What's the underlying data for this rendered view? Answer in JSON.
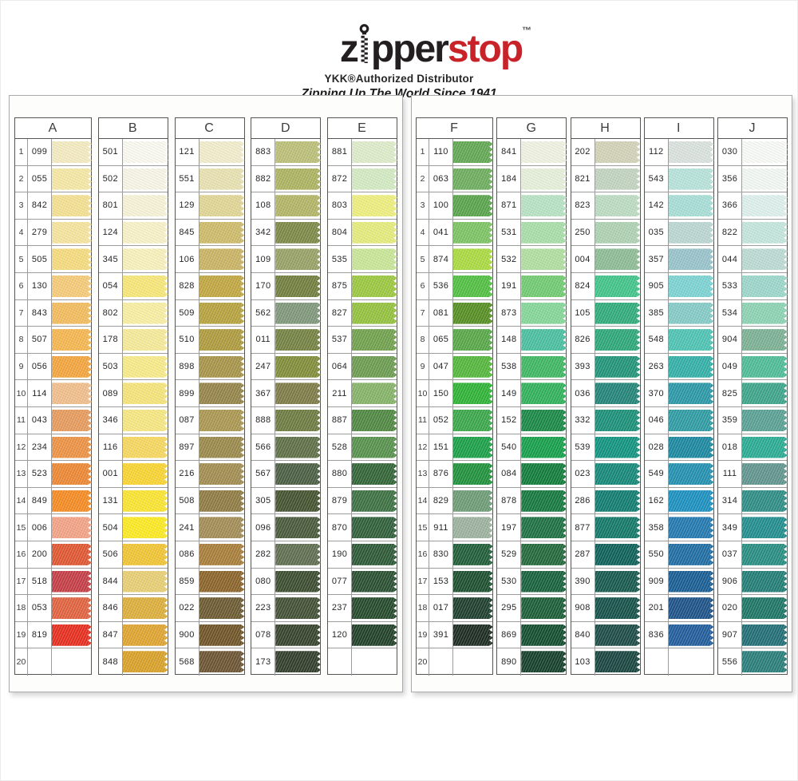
{
  "header": {
    "brand_z": "z",
    "brand_pper": "pper",
    "brand_stop": "stop",
    "brand_tm": "™",
    "subtitle": "YKK®Authorized Distributor",
    "tagline": "Zipping Up The World Since 1941",
    "brand_black_color": "#231f20",
    "brand_red_color": "#c9232a"
  },
  "row_numbers": [
    "1",
    "2",
    "3",
    "4",
    "5",
    "6",
    "7",
    "8",
    "9",
    "10",
    "11",
    "12",
    "13",
    "14",
    "15",
    "16",
    "17",
    "18",
    "19",
    "20"
  ],
  "panels": [
    {
      "columns": [
        {
          "letter": "A",
          "cells": [
            [
              "099",
              "#F5ECC0"
            ],
            [
              "055",
              "#F7E9A4"
            ],
            [
              "842",
              "#F5E190"
            ],
            [
              "279",
              "#F7E59C"
            ],
            [
              "505",
              "#F7DC7C"
            ],
            [
              "130",
              "#F7CB76"
            ],
            [
              "843",
              "#F4BC5A"
            ],
            [
              "507",
              "#F7B64C"
            ],
            [
              "056",
              "#F5A43A"
            ],
            [
              "114",
              "#F2BE8A"
            ],
            [
              "043",
              "#E89A5A"
            ],
            [
              "234",
              "#EE9140"
            ],
            [
              "523",
              "#EE8630"
            ],
            [
              "849",
              "#F78A1E"
            ],
            [
              "006",
              "#F4A284"
            ],
            [
              "200",
              "#E1542E"
            ],
            [
              "518",
              "#C53A42"
            ],
            [
              "053",
              "#E2603C"
            ],
            [
              "819",
              "#E82A1A"
            ],
            [
              "",
              ""
            ]
          ]
        },
        {
          "letter": "B",
          "cells": [
            [
              "501",
              "#FCFBF2"
            ],
            [
              "502",
              "#F9F7E6"
            ],
            [
              "801",
              "#F8F4D8"
            ],
            [
              "124",
              "#FAF3C8"
            ],
            [
              "345",
              "#F9F2BC"
            ],
            [
              "054",
              "#F9E876"
            ],
            [
              "802",
              "#FAF0A2"
            ],
            [
              "178",
              "#F8EB98"
            ],
            [
              "503",
              "#F9EC88"
            ],
            [
              "089",
              "#F7E578"
            ],
            [
              "346",
              "#F8E880"
            ],
            [
              "116",
              "#F8D85C"
            ],
            [
              "001",
              "#FAD52E"
            ],
            [
              "131",
              "#FCE52C"
            ],
            [
              "504",
              "#FEEB1E"
            ],
            [
              "506",
              "#F2C530"
            ],
            [
              "844",
              "#E9CF72"
            ],
            [
              "846",
              "#DDAE38"
            ],
            [
              "847",
              "#E0A42C"
            ],
            [
              "848",
              "#D9A024"
            ]
          ]
        },
        {
          "letter": "C",
          "cells": [
            [
              "121",
              "#F3EECC"
            ],
            [
              "551",
              "#E9E2B0"
            ],
            [
              "129",
              "#E1D694"
            ],
            [
              "845",
              "#CEBB68"
            ],
            [
              "106",
              "#CAB362"
            ],
            [
              "828",
              "#C1A63E"
            ],
            [
              "509",
              "#B6A23A"
            ],
            [
              "510",
              "#AE9A3A"
            ],
            [
              "898",
              "#A79346"
            ],
            [
              "899",
              "#948346"
            ],
            [
              "087",
              "#AA964E"
            ],
            [
              "897",
              "#998848"
            ],
            [
              "216",
              "#A18C4E"
            ],
            [
              "508",
              "#8E7A40"
            ],
            [
              "241",
              "#A28B54"
            ],
            [
              "086",
              "#A87C36"
            ],
            [
              "859",
              "#8A6226"
            ],
            [
              "022",
              "#6A582E"
            ],
            [
              "900",
              "#6E5224"
            ],
            [
              "568",
              "#6A5230"
            ]
          ]
        },
        {
          "letter": "D",
          "cells": [
            [
              "883",
              "#BBBF76"
            ],
            [
              "882",
              "#ACB35E"
            ],
            [
              "108",
              "#B2B564"
            ],
            [
              "342",
              "#7B8844"
            ],
            [
              "109",
              "#97A064"
            ],
            [
              "170",
              "#6F7D3B"
            ],
            [
              "562",
              "#7E9679"
            ],
            [
              "011",
              "#72813F"
            ],
            [
              "247",
              "#7F8C36"
            ],
            [
              "367",
              "#7C7A44"
            ],
            [
              "888",
              "#6B7A3E"
            ],
            [
              "566",
              "#5C6E44"
            ],
            [
              "567",
              "#485C40"
            ],
            [
              "305",
              "#42502C"
            ],
            [
              "096",
              "#465838"
            ],
            [
              "282",
              "#5E6C4E"
            ],
            [
              "080",
              "#384A2C"
            ],
            [
              "223",
              "#404E32"
            ],
            [
              "078",
              "#344028"
            ],
            [
              "173",
              "#2F3B28"
            ]
          ]
        },
        {
          "letter": "E",
          "cells": [
            [
              "881",
              "#DFEDCA"
            ],
            [
              "872",
              "#D3EBC2"
            ],
            [
              "803",
              "#EFF07C"
            ],
            [
              "804",
              "#E5ED7A"
            ],
            [
              "535",
              "#C8E796"
            ],
            [
              "875",
              "#9AC83C"
            ],
            [
              "827",
              "#92C23A"
            ],
            [
              "537",
              "#6FA04A"
            ],
            [
              "064",
              "#699B4D"
            ],
            [
              "211",
              "#84B366"
            ],
            [
              "887",
              "#4D873F"
            ],
            [
              "528",
              "#549049"
            ],
            [
              "880",
              "#2E6333"
            ],
            [
              "879",
              "#396F3F"
            ],
            [
              "870",
              "#2D5D37"
            ],
            [
              "190",
              "#295733"
            ],
            [
              "077",
              "#254D2D"
            ],
            [
              "237",
              "#214727"
            ],
            [
              "120",
              "#1D3E25"
            ],
            [
              "",
              ""
            ]
          ]
        }
      ]
    },
    {
      "columns": [
        {
          "letter": "F",
          "cells": [
            [
              "110",
              "#60A751"
            ],
            [
              "063",
              "#6BAD5B"
            ],
            [
              "100",
              "#57A349"
            ],
            [
              "041",
              "#7BC361"
            ],
            [
              "874",
              "#A9DB3D"
            ],
            [
              "536",
              "#4FBF3F"
            ],
            [
              "081",
              "#538D1F"
            ],
            [
              "065",
              "#55A745"
            ],
            [
              "047",
              "#51B739"
            ],
            [
              "150",
              "#2BB333"
            ],
            [
              "052",
              "#37A747"
            ],
            [
              "151",
              "#179F44"
            ],
            [
              "876",
              "#1C9038"
            ],
            [
              "829",
              "#6B9B74"
            ],
            [
              "911",
              "#9BB29E"
            ],
            [
              "830",
              "#1D5B35"
            ],
            [
              "153",
              "#184C2B"
            ],
            [
              "017",
              "#1A3C2A"
            ],
            [
              "391",
              "#18281E"
            ],
            [
              "",
              ""
            ]
          ]
        },
        {
          "letter": "G",
          "cells": [
            [
              "841",
              "#F1F3E2"
            ],
            [
              "184",
              "#E7F1DA"
            ],
            [
              "871",
              "#B7E3C3"
            ],
            [
              "531",
              "#A7DFA7"
            ],
            [
              "532",
              "#AFDF9F"
            ],
            [
              "191",
              "#6FCB6F"
            ],
            [
              "873",
              "#83D797"
            ],
            [
              "148",
              "#47BF9F"
            ],
            [
              "538",
              "#3BB75F"
            ],
            [
              "149",
              "#2DB157"
            ],
            [
              "152",
              "#158743"
            ],
            [
              "540",
              "#119F47"
            ],
            [
              "084",
              "#0D7B37"
            ],
            [
              "878",
              "#11773B"
            ],
            [
              "197",
              "#196F3F"
            ],
            [
              "529",
              "#1F6737"
            ],
            [
              "530",
              "#135F39"
            ],
            [
              "295",
              "#175B33"
            ],
            [
              "869",
              "#0F4B2B"
            ],
            [
              "890",
              "#113D27"
            ]
          ]
        },
        {
          "letter": "H",
          "cells": [
            [
              "202",
              "#D2D3B8"
            ],
            [
              "821",
              "#C2D4C0"
            ],
            [
              "823",
              "#BCDCC2"
            ],
            [
              "250",
              "#AED2B2"
            ],
            [
              "004",
              "#8CBC94"
            ],
            [
              "824",
              "#3EC488"
            ],
            [
              "105",
              "#2DAB79"
            ],
            [
              "826",
              "#29A777"
            ],
            [
              "393",
              "#1D9377"
            ],
            [
              "036",
              "#1F8377"
            ],
            [
              "332",
              "#178F77"
            ],
            [
              "539",
              "#0D937F"
            ],
            [
              "023",
              "#118777"
            ],
            [
              "286",
              "#0D7B6F"
            ],
            [
              "877",
              "#0F7767"
            ],
            [
              "287",
              "#095F57"
            ],
            [
              "390",
              "#13574B"
            ],
            [
              "908",
              "#114F47"
            ],
            [
              "840",
              "#194943"
            ],
            [
              "103",
              "#15433D"
            ]
          ]
        },
        {
          "letter": "I",
          "cells": [
            [
              "112",
              "#DBE3DF"
            ],
            [
              "543",
              "#B7E3DB"
            ],
            [
              "142",
              "#A7DFD7"
            ],
            [
              "035",
              "#BBD7D3"
            ],
            [
              "357",
              "#97C3CB"
            ],
            [
              "905",
              "#7BD3D3"
            ],
            [
              "385",
              "#83CBC7"
            ],
            [
              "548",
              "#4BC3B3"
            ],
            [
              "263",
              "#2FAFA7"
            ],
            [
              "370",
              "#2797A7"
            ],
            [
              "046",
              "#2B9BA3"
            ],
            [
              "028",
              "#17879F"
            ],
            [
              "549",
              "#1F8FAF"
            ],
            [
              "162",
              "#178FBF"
            ],
            [
              "358",
              "#1F77AF"
            ],
            [
              "550",
              "#1B6BA3"
            ],
            [
              "909",
              "#145B93"
            ],
            [
              "201",
              "#195087"
            ],
            [
              "836",
              "#1D5B9B"
            ],
            [
              "",
              ""
            ]
          ]
        },
        {
          "letter": "J",
          "cells": [
            [
              "030",
              "#FAFCF9"
            ],
            [
              "356",
              "#F3F9F5"
            ],
            [
              "366",
              "#DEF1ED"
            ],
            [
              "822",
              "#C3E7DD"
            ],
            [
              "044",
              "#BBDBD3"
            ],
            [
              "533",
              "#9BD7CB"
            ],
            [
              "534",
              "#8BD3B3"
            ],
            [
              "904",
              "#7AB093"
            ],
            [
              "049",
              "#4BBC96"
            ],
            [
              "825",
              "#3AA489"
            ],
            [
              "359",
              "#57A093"
            ],
            [
              "018",
              "#26AB92"
            ],
            [
              "111",
              "#5F948D"
            ],
            [
              "314",
              "#2A8C84"
            ],
            [
              "349",
              "#1E8C8C"
            ],
            [
              "037",
              "#248C80"
            ],
            [
              "906",
              "#1E7C74"
            ],
            [
              "020",
              "#1A7464"
            ],
            [
              "907",
              "#1E6C74"
            ],
            [
              "556",
              "#267C78"
            ]
          ]
        }
      ]
    }
  ]
}
